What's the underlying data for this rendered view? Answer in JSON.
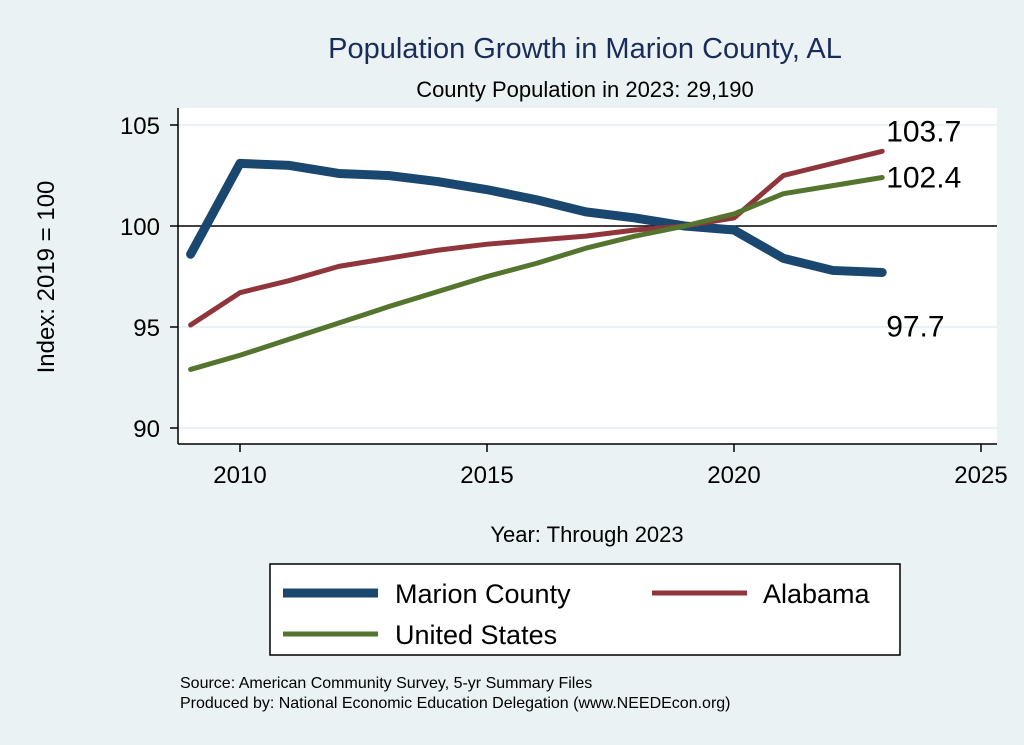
{
  "chart_data": {
    "type": "line",
    "title": "Population Growth in Marion County, AL",
    "subtitle": "County Population in 2023: 29,190",
    "xlabel": "Year: Through 2023",
    "ylabel": "Index: 2019 = 100",
    "xlim": [
      2009,
      2025.5
    ],
    "ylim": [
      88.5,
      105.9
    ],
    "xticks": [
      2010,
      2015,
      2020,
      2025
    ],
    "yticks": [
      90,
      95,
      100,
      105
    ],
    "reference_line": 100,
    "grid": true,
    "legend_position": "bottom",
    "x": [
      2009,
      2010,
      2011,
      2012,
      2013,
      2014,
      2015,
      2016,
      2017,
      2018,
      2019,
      2020,
      2021,
      2022,
      2023
    ],
    "series": [
      {
        "name": "Marion  County",
        "color": "#1a476f",
        "width": 9,
        "values": [
          98.6,
          103.1,
          103.0,
          102.6,
          102.5,
          102.2,
          101.8,
          101.3,
          100.7,
          100.4,
          100.0,
          99.8,
          98.4,
          97.8,
          97.7
        ],
        "end_label": "97.7"
      },
      {
        "name": "Alabama",
        "color": "#90353b",
        "width": 5,
        "values": [
          95.1,
          96.7,
          97.3,
          98.0,
          98.4,
          98.8,
          99.1,
          99.3,
          99.5,
          99.8,
          100.0,
          100.4,
          102.5,
          103.1,
          103.7
        ],
        "end_label": "103.7"
      },
      {
        "name": "United States",
        "color": "#55752f",
        "width": 5,
        "values": [
          92.9,
          93.6,
          94.4,
          95.2,
          96.0,
          96.75,
          97.5,
          98.15,
          98.9,
          99.5,
          100.0,
          100.6,
          101.6,
          102.0,
          102.4
        ],
        "end_label": "102.4"
      }
    ]
  },
  "footer": {
    "source": "Source: American Community Survey, 5-yr Summary Files",
    "produced": "Produced by: National Economic Education Delegation (www.NEEDEcon.org)"
  }
}
